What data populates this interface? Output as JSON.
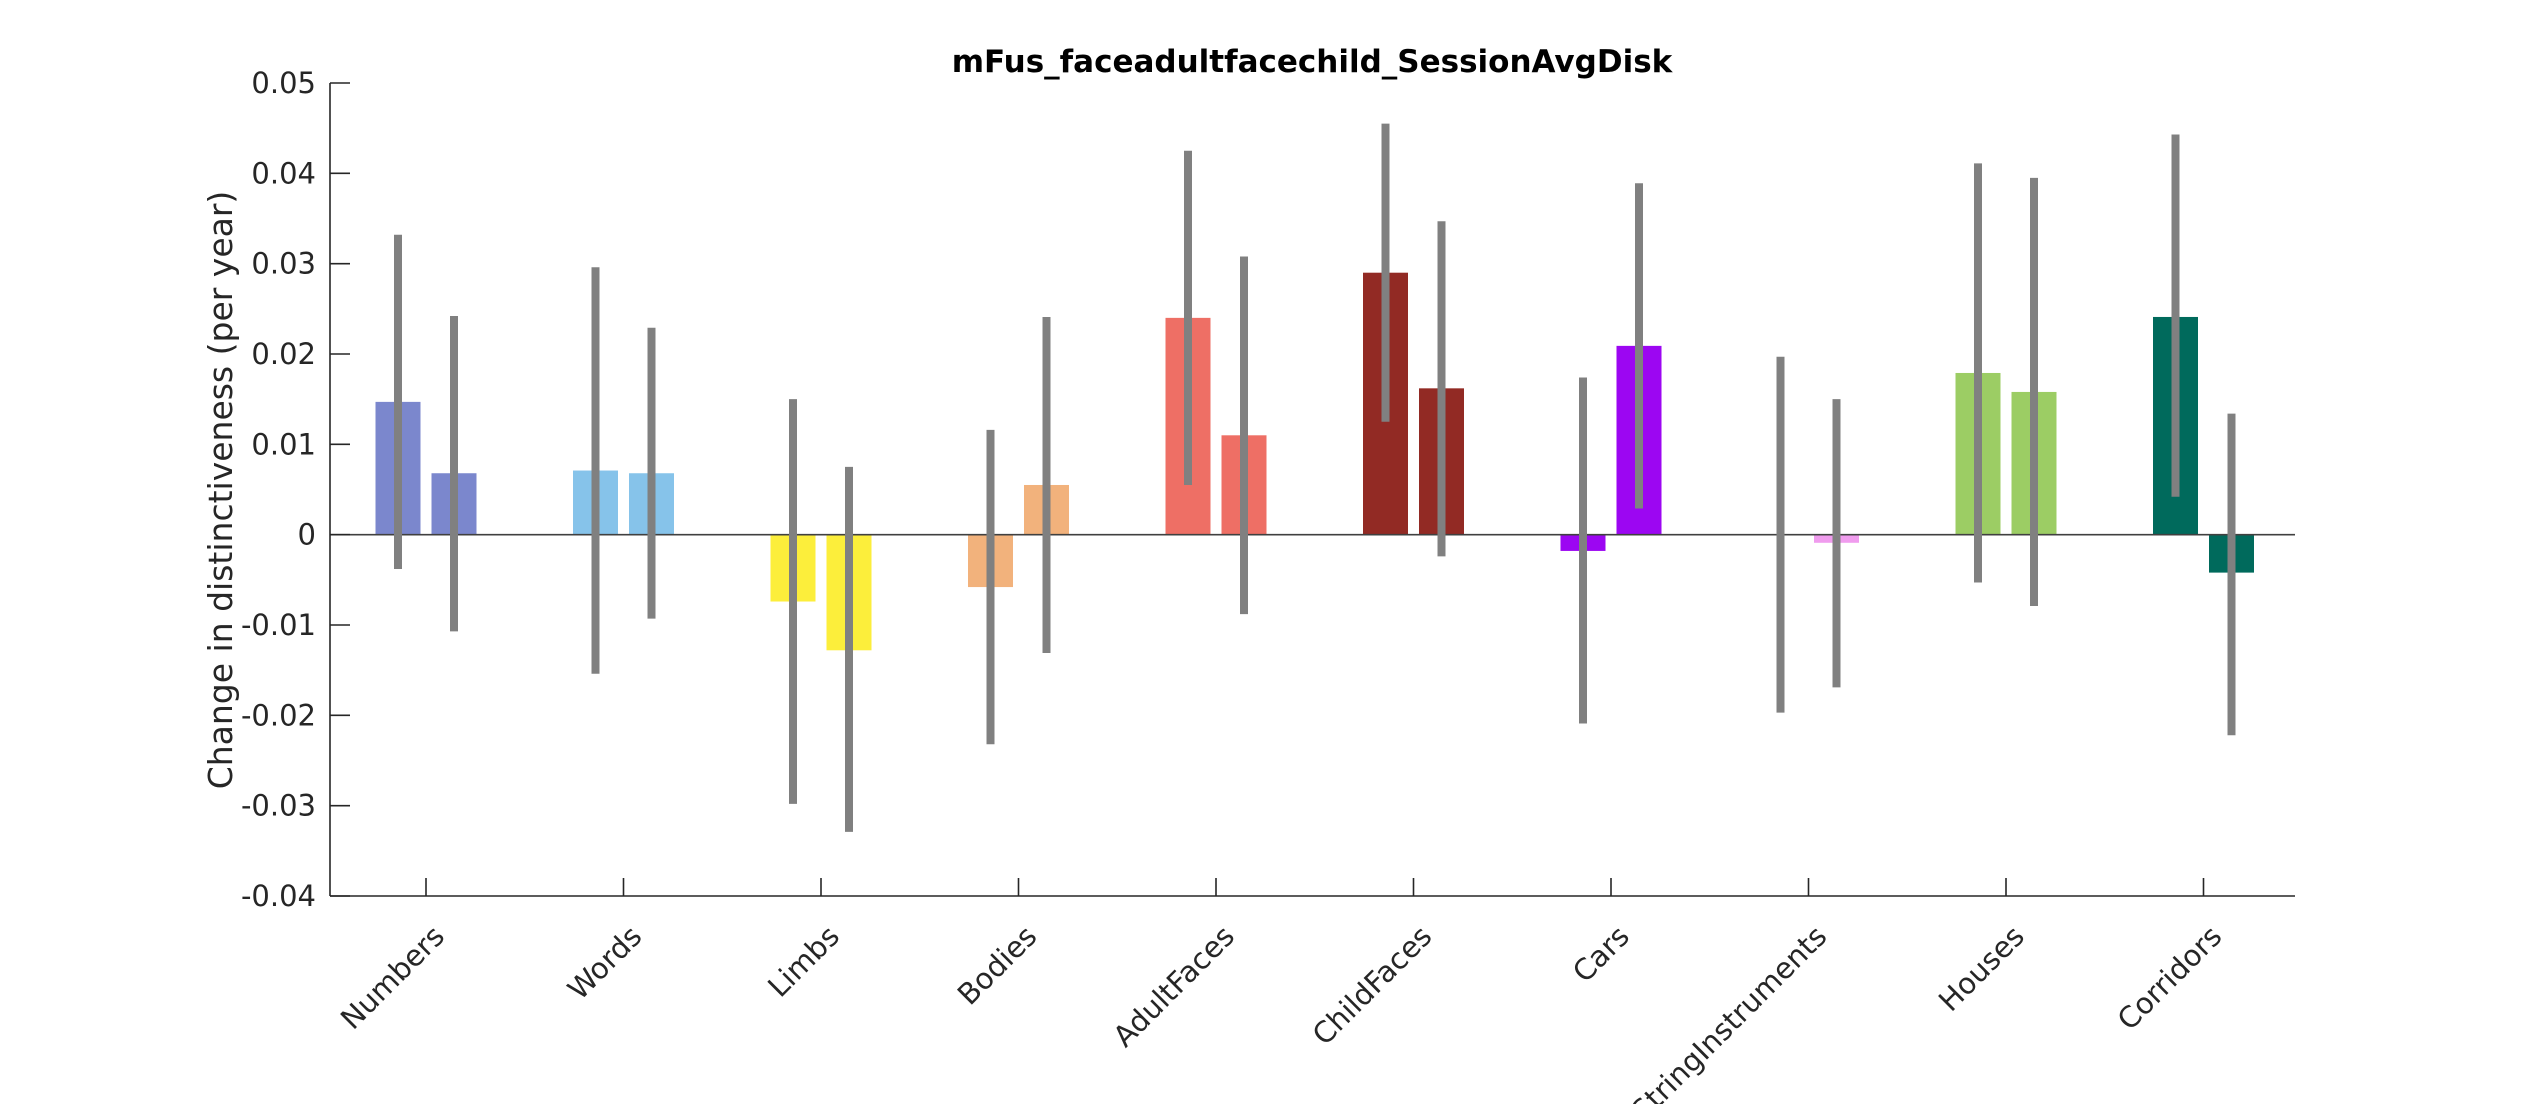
{
  "chart_data": {
    "type": "bar",
    "title": "mFus_faceadultfacechild_SessionAvgDisk",
    "xlabel": "",
    "ylabel": "Change in distinctiveness (per year)",
    "ylim": [
      -0.04,
      0.05
    ],
    "yticks": [
      -0.04,
      -0.03,
      -0.02,
      -0.01,
      0,
      0.01,
      0.02,
      0.03,
      0.04,
      0.05
    ],
    "ytick_labels": [
      "-0.04",
      "-0.03",
      "-0.02",
      "-0.01",
      "0",
      "0.01",
      "0.02",
      "0.03",
      "0.04",
      "0.05"
    ],
    "grid": false,
    "legend": "none",
    "categories": [
      "Numbers",
      "Words",
      "Limbs",
      "Bodies",
      "AdultFaces",
      "ChildFaces",
      "Cars",
      "StringInstruments",
      "Houses",
      "Corridors"
    ],
    "colors": [
      [
        "#7b87cd",
        "#7b87cd"
      ],
      [
        "#86c3ea",
        "#86c3ea"
      ],
      [
        "#fcee3b",
        "#fcee3b"
      ],
      [
        "#f2b27c",
        "#f2b27c"
      ],
      [
        "#ee6f65",
        "#ee6f65"
      ],
      [
        "#922a24",
        "#922a24"
      ],
      [
        "#9c06f2",
        "#9c06f2"
      ],
      [
        "#f09cee",
        "#f09cee"
      ],
      [
        "#9ccd64",
        "#9ccd64"
      ],
      [
        "#006a5c",
        "#006a5c"
      ]
    ],
    "error_bar_color": "#808080",
    "series": [
      {
        "values": [
          0.0147,
          0.0071,
          -0.0074,
          -0.0058,
          0.024,
          0.029,
          -0.0018,
          0.0,
          0.0179,
          0.0241
        ],
        "err_low": [
          -0.0038,
          -0.0154,
          -0.0298,
          -0.0232,
          0.0055,
          0.0125,
          -0.0209,
          -0.0197,
          -0.0053,
          0.0042
        ],
        "err_high": [
          0.0332,
          0.0296,
          0.015,
          0.0116,
          0.0425,
          0.0455,
          0.0174,
          0.0197,
          0.0411,
          0.0443
        ]
      },
      {
        "values": [
          0.0068,
          0.0068,
          -0.0128,
          0.0055,
          0.011,
          0.0162,
          0.0209,
          -0.0009,
          0.0158,
          -0.0042
        ],
        "err_low": [
          -0.0107,
          -0.0093,
          -0.0329,
          -0.0131,
          -0.0088,
          -0.0024,
          0.0029,
          -0.0169,
          -0.0079,
          -0.0222
        ],
        "err_high": [
          0.0242,
          0.0229,
          0.0075,
          0.0241,
          0.0308,
          0.0347,
          0.0389,
          0.015,
          0.0395,
          0.0134
        ]
      }
    ]
  }
}
